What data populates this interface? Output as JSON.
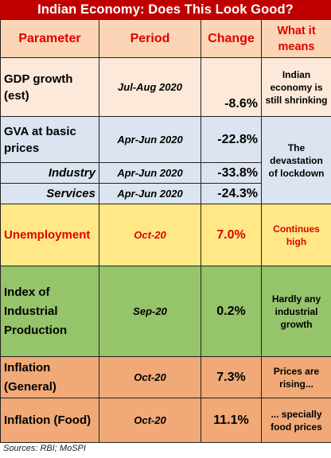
{
  "title": "Indian Economy: Does This Look Good?",
  "headers": {
    "parameter": "Parameter",
    "period": "Period",
    "change": "Change",
    "meaning": "What it means"
  },
  "rows": {
    "gdp": {
      "parameter": "GDP growth (est)",
      "period": "Jul-Aug 2020",
      "change": "-8.6%",
      "meaning": "Indian economy is still shrinking"
    },
    "gva": {
      "parameter": "GVA at basic prices",
      "period": "Apr-Jun 2020",
      "change": "-22.8%",
      "meaning": "The devastation of lockdown"
    },
    "industry": {
      "parameter": "Industry",
      "period": "Apr-Jun 2020",
      "change": "-33.8%"
    },
    "services": {
      "parameter": "Services",
      "period": "Apr-Jun 2020",
      "change": "-24.3%"
    },
    "unemployment": {
      "parameter": "Unemployment",
      "period": "Oct-20",
      "change": "7.0%",
      "meaning": "Continues high"
    },
    "iip": {
      "parameter": "Index of Industrial Production",
      "period": "Sep-20",
      "change": "0.2%",
      "meaning": "Hardly any industrial growth"
    },
    "inflation_general": {
      "parameter": "Inflation (General)",
      "period": "Oct-20",
      "change": "7.3%",
      "meaning": "Prices are rising..."
    },
    "inflation_food": {
      "parameter": "Inflation (Food)",
      "period": "Oct-20",
      "change": "11.1%",
      "meaning": "... specially food prices"
    }
  },
  "source": "Sources: RBI; MoSPI",
  "colors": {
    "title_bg": "#c00000",
    "header_bg": "#fbd5b5",
    "gdp_bg": "#fde9d9",
    "gva_bg": "#dbe4f0",
    "unemployment_bg": "#ffe885",
    "iip_bg": "#95c46a",
    "inflation_bg": "#f0a977",
    "accent_red": "#e00000"
  }
}
